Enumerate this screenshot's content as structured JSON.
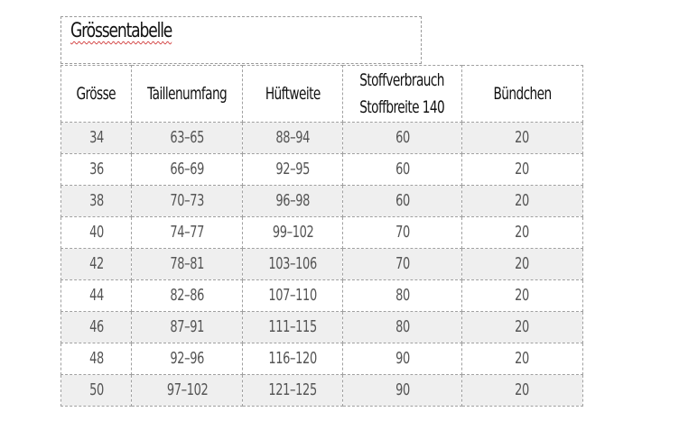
{
  "title": "Grössentabelle",
  "table": {
    "headers": [
      "Grösse",
      "Taillenumfang",
      "Hüftweite",
      "Stoffverbrauch",
      "Bündchen"
    ],
    "header_sub": {
      "stoff": "Stoffbreite 140"
    },
    "rows": [
      [
        "34",
        "63–65",
        "88–94",
        "60",
        "20"
      ],
      [
        "36",
        "66–69",
        "92–95",
        "60",
        "20"
      ],
      [
        "38",
        "70–73",
        "96–98",
        "60",
        "20"
      ],
      [
        "40",
        "74–77",
        "99–102",
        "70",
        "20"
      ],
      [
        "42",
        "78–81",
        "103–106",
        "70",
        "20"
      ],
      [
        "44",
        "82–86",
        "107–110",
        "80",
        "20"
      ],
      [
        "46",
        "87–91",
        "111–115",
        "80",
        "20"
      ],
      [
        "48",
        "92–96",
        "116–120",
        "90",
        "20"
      ],
      [
        "50",
        "97–102",
        "121–125",
        "90",
        "20"
      ]
    ]
  }
}
